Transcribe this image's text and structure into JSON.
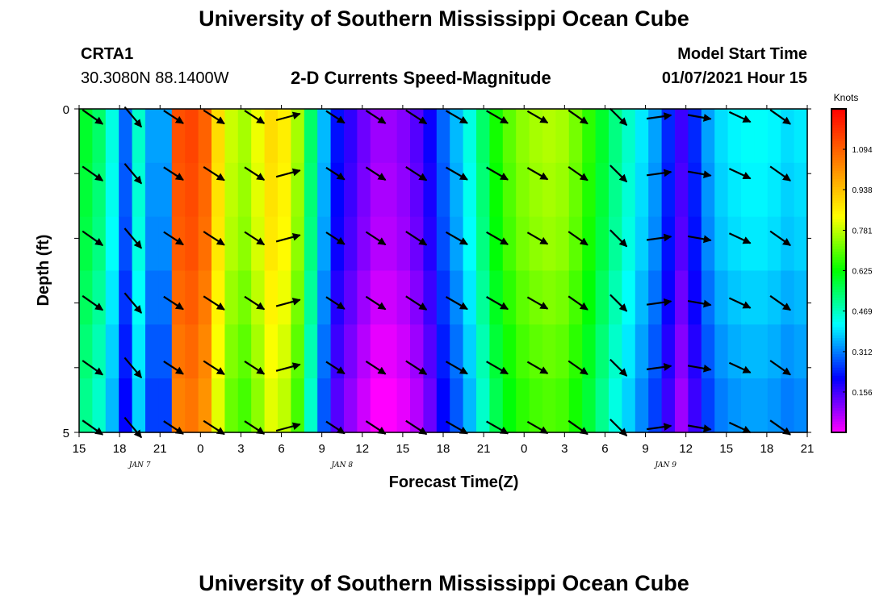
{
  "header": {
    "title": "University of Southern Mississippi Ocean Cube",
    "station_id": "CRTA1",
    "coordinates": "30.3080N 88.1400W",
    "model_label": "Model Start Time",
    "model_time": "01/07/2021 Hour 15",
    "footer_title": "University of Southern Mississippi Ocean Cube"
  },
  "chart_data": {
    "type": "heatmap",
    "title": "2-D Currents Speed-Magnitude",
    "xlabel": "Forecast Time(Z)",
    "ylabel": "Depth (ft)",
    "y_tick_labels": [
      "0",
      "5"
    ],
    "ylim": [
      0,
      5
    ],
    "x_tick_labels": [
      "15",
      "18",
      "21",
      "0",
      "3",
      "6",
      "9",
      "12",
      "15",
      "18",
      "21",
      "0",
      "3",
      "6",
      "9",
      "12",
      "15",
      "18",
      "21"
    ],
    "date_labels": [
      {
        "text": "JAN 7",
        "at_tick": 2
      },
      {
        "text": "JAN 8",
        "at_tick": 7
      },
      {
        "text": "JAN 9",
        "at_tick": 15
      }
    ],
    "colorbar": {
      "unit": "Knots",
      "tick_labels": [
        "1.094",
        "0.938",
        "0.781",
        "0.625",
        "0.469",
        "0.312",
        "0.156"
      ],
      "tick_values": [
        1.094,
        0.938,
        0.781,
        0.625,
        0.469,
        0.312,
        0.156
      ],
      "range": [
        0,
        1.25
      ],
      "colors": [
        "#ff00ff",
        "#8000ff",
        "#0000ff",
        "#0080ff",
        "#00ffff",
        "#00ff80",
        "#00ff00",
        "#80ff00",
        "#ffff00",
        "#ffc000",
        "#ff8000",
        "#ff4000",
        "#ff0000"
      ]
    },
    "time_hours": [
      0,
      1,
      2,
      3,
      4,
      5,
      6,
      7,
      8,
      9,
      10,
      11,
      12,
      13,
      14,
      15,
      16,
      17,
      18,
      19,
      20,
      21,
      22,
      23,
      24,
      25,
      26,
      27,
      28,
      29,
      30,
      31,
      32,
      33,
      34,
      35,
      36,
      37,
      38,
      39,
      40,
      41,
      42,
      43,
      44,
      45,
      46,
      47,
      48,
      49,
      50,
      51,
      52,
      53,
      54
    ],
    "speed_knots": [
      0.55,
      0.5,
      0.4,
      0.25,
      0.42,
      0.3,
      0.3,
      1.08,
      1.1,
      1.05,
      0.85,
      0.75,
      0.72,
      0.78,
      0.85,
      0.82,
      0.72,
      0.5,
      0.32,
      0.18,
      0.13,
      0.08,
      0.04,
      0.04,
      0.06,
      0.1,
      0.16,
      0.25,
      0.32,
      0.4,
      0.5,
      0.6,
      0.66,
      0.7,
      0.72,
      0.73,
      0.72,
      0.68,
      0.62,
      0.55,
      0.48,
      0.42,
      0.36,
      0.3,
      0.2,
      0.12,
      0.2,
      0.3,
      0.35,
      0.37,
      0.38,
      0.38,
      0.37,
      0.35,
      0.36
    ],
    "depth_variation": [
      0.04,
      0.03,
      0.02,
      0.0,
      -0.02,
      -0.04
    ],
    "arrows": {
      "times": [
        1,
        4,
        7,
        10,
        13,
        15.5,
        19,
        22,
        25,
        28,
        31,
        34,
        37,
        40,
        43,
        46,
        49,
        52
      ],
      "depth_rows": [
        0,
        1,
        2,
        3,
        4,
        5
      ],
      "angle_deg": [
        -35,
        -50,
        -33,
        -33,
        -33,
        15,
        -33,
        -33,
        -33,
        -30,
        -30,
        -30,
        -35,
        -45,
        8,
        -10,
        -25,
        -35
      ],
      "length": [
        0.9,
        0.95,
        0.85,
        0.9,
        0.85,
        0.9,
        0.8,
        0.85,
        0.9,
        0.9,
        0.9,
        0.85,
        0.85,
        0.85,
        0.9,
        0.85,
        0.85,
        0.9
      ]
    }
  }
}
